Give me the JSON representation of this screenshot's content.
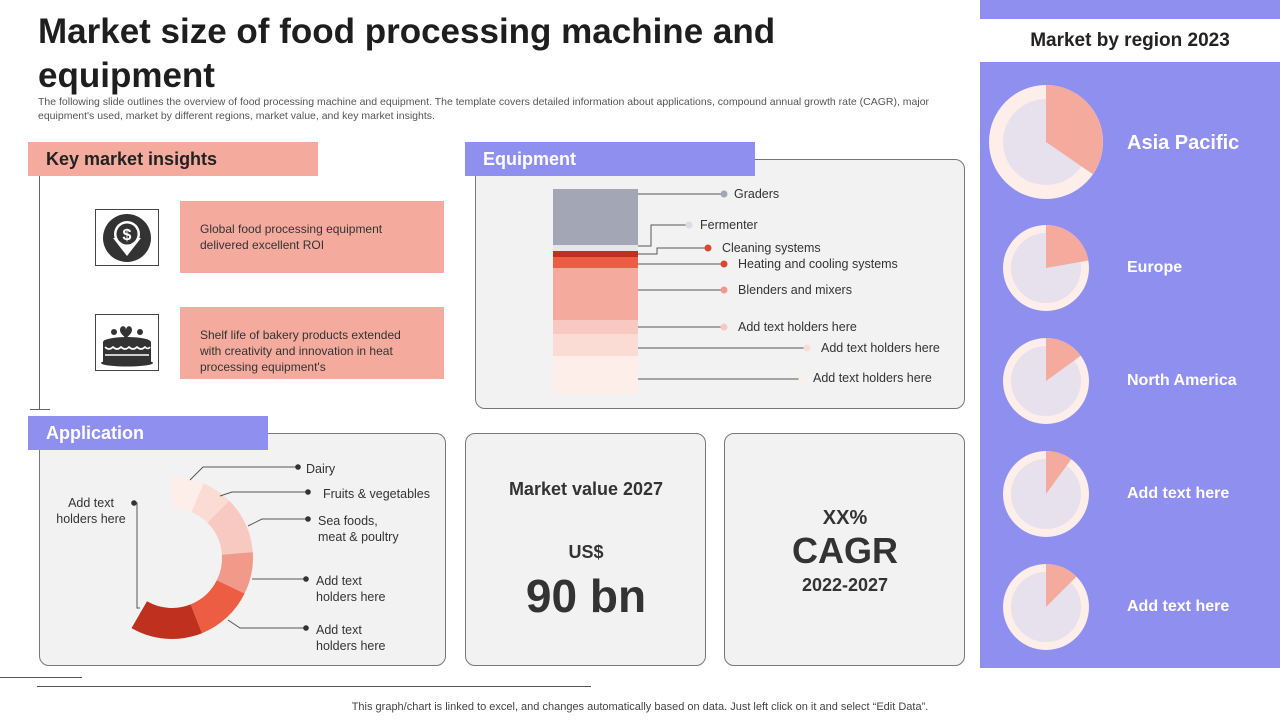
{
  "title": "Market size of food processing machine and equipment",
  "subtitle": "The following slide outlines the overview of food processing machine and equipment. The template covers detailed information about applications, compound annual growth rate (CAGR),  major equipment's used, market by different regions, market value, and key market insights.",
  "insights": {
    "tab": "Key market insights",
    "items": [
      {
        "icon": "dollar-down-icon",
        "text": "Global food processing equipment delivered  excellent ROI"
      },
      {
        "icon": "cake-icon",
        "text": "Shelf life of bakery products extended with creativity and innovation  in heat processing equipment's"
      }
    ]
  },
  "equipment": {
    "tab": "Equipment",
    "labels": [
      "Graders",
      "Fermenter",
      "Cleaning systems",
      "Heating and cooling systems",
      "Blenders and mixers",
      "Add text holders here",
      "Add text holders here",
      "Add text holders here"
    ]
  },
  "application": {
    "tab": "Application",
    "left_label_1": "Add text",
    "left_label_2": "holders here",
    "labels": [
      {
        "l1": "Dairy",
        "l2": ""
      },
      {
        "l1": "Fruits & vegetables",
        "l2": ""
      },
      {
        "l1": "Sea foods,",
        "l2": "meat & poultry"
      },
      {
        "l1": "Add text",
        "l2": "holders here"
      },
      {
        "l1": "Add text",
        "l2": "holders here"
      }
    ]
  },
  "market_value": {
    "title": "Market value 2027",
    "currency": "US$",
    "value": "90 bn"
  },
  "cagr": {
    "value": "XX%",
    "label": "CAGR",
    "period": "2022-2027"
  },
  "regions": {
    "header": "Market by region 2023",
    "items": [
      "Asia Pacific",
      "Europe",
      "North America",
      "Add text here",
      "Add text here"
    ]
  },
  "footer": "This graph/chart is linked to excel,  and changes automatically based on data. Just left click on it and select “Edit Data”.",
  "colors": {
    "accent_purple": "#8f8ff0",
    "accent_salmon": "#f4ab9e",
    "dark_red": "#c0301e"
  }
}
